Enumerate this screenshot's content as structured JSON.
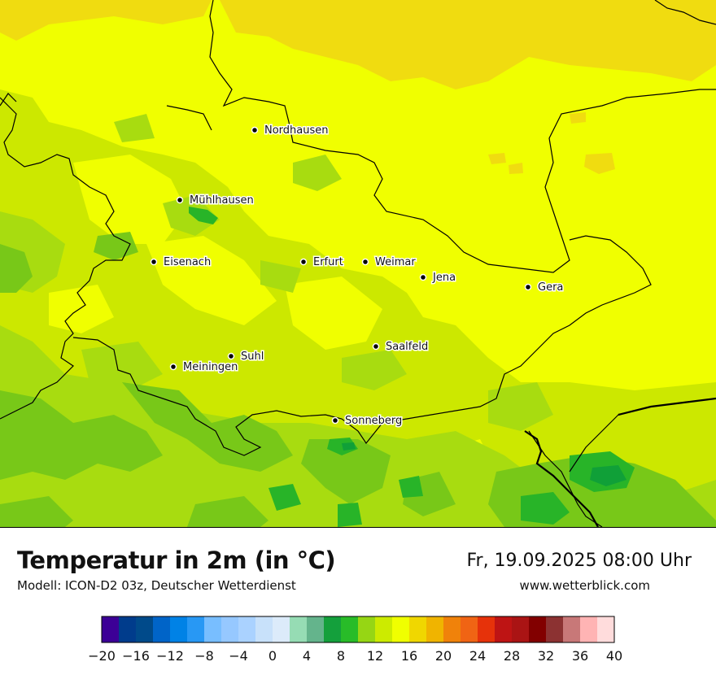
{
  "title": "Temperatur in 2m (in °C)",
  "subtitle": "Modell: ICON-D2 03z, Deutscher Wetterdienst",
  "datetime": "Fr, 19.09.2025 08:00 Uhr",
  "website": "www.wetterblick.com",
  "cities": [
    {
      "name": "Nordhausen"
    },
    {
      "name": "Mühlhausen"
    },
    {
      "name": "Eisenach"
    },
    {
      "name": "Erfurt"
    },
    {
      "name": "Weimar"
    },
    {
      "name": "Jena"
    },
    {
      "name": "Gera"
    },
    {
      "name": "Suhl"
    },
    {
      "name": "Meiningen"
    },
    {
      "name": "Saalfeld"
    },
    {
      "name": "Sonneberg"
    }
  ],
  "colors": {
    "t10": "#78c818",
    "t12": "#a8dc10",
    "t14": "#cce800",
    "t16": "#f0ff00",
    "t18": "#f0dc10",
    "t8": "#28b428",
    "t6": "#10a038"
  },
  "legend": {
    "ticks": [
      "−20",
      "−16",
      "−12",
      "−8",
      "−4",
      "0",
      "4",
      "8",
      "12",
      "16",
      "20",
      "24",
      "28",
      "32",
      "36",
      "40"
    ],
    "colors": [
      "#3c0096",
      "#003c8c",
      "#004a8a",
      "#0064c8",
      "#0082e6",
      "#2898f4",
      "#78beff",
      "#96c8ff",
      "#aad2ff",
      "#c8e1fa",
      "#dcebfa",
      "#96dcb4",
      "#64b48c",
      "#14a03c",
      "#28bc28",
      "#96d614",
      "#cceb00",
      "#f0ff00",
      "#f0d700",
      "#f0b400",
      "#f0820a",
      "#f06414",
      "#e6320a",
      "#be1414",
      "#aa1414",
      "#820000",
      "#8c3232",
      "#c87878",
      "#ffb4b4",
      "#ffdcdc"
    ]
  }
}
